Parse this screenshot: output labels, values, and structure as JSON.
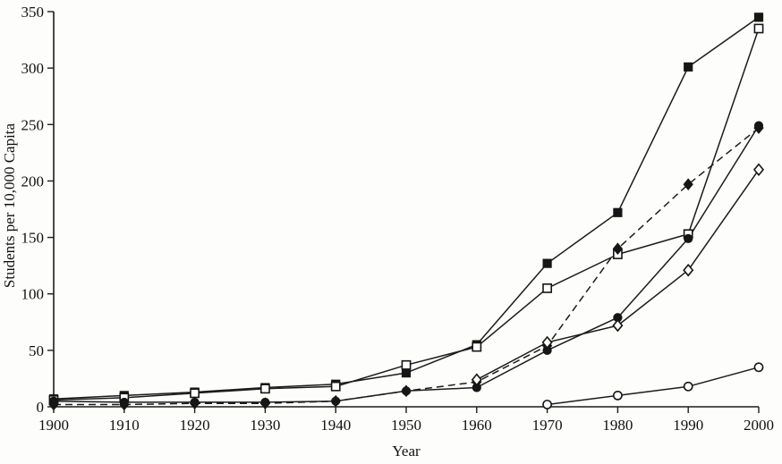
{
  "chart_data": {
    "type": "line",
    "title": "",
    "xlabel": "Year",
    "ylabel": "Students per 10,000 Capita",
    "x": [
      1900,
      1910,
      1920,
      1930,
      1940,
      1950,
      1960,
      1970,
      1980,
      1990,
      2000
    ],
    "xlim": [
      1900,
      2000
    ],
    "ylim": [
      0,
      350
    ],
    "yticks": [
      0,
      50,
      100,
      150,
      200,
      250,
      300,
      350
    ],
    "grid": false,
    "legend": "none",
    "axis_color": "#1c1c1c",
    "series": [
      {
        "name": "series-filled-square",
        "marker": "square-filled",
        "line": "solid",
        "values": [
          7,
          10,
          13,
          17,
          20,
          30,
          55,
          127,
          172,
          301,
          345
        ]
      },
      {
        "name": "series-open-square",
        "marker": "square-open",
        "line": "solid",
        "values": [
          6,
          8,
          12,
          16,
          18,
          37,
          53,
          105,
          135,
          153,
          335
        ]
      },
      {
        "name": "series-filled-circle",
        "marker": "circle-filled",
        "line": "solid",
        "values": [
          5,
          4,
          4,
          4,
          5,
          14,
          17,
          50,
          79,
          149,
          249
        ]
      },
      {
        "name": "series-filled-diamond",
        "marker": "diamond-filled",
        "line": "dashed",
        "values": [
          2,
          2,
          3,
          3,
          5,
          14,
          22,
          54,
          140,
          197,
          247
        ]
      },
      {
        "name": "series-open-diamond",
        "marker": "diamond-open",
        "line": "solid",
        "values": [
          null,
          null,
          null,
          null,
          null,
          null,
          24,
          57,
          72,
          121,
          210
        ]
      },
      {
        "name": "series-open-circle",
        "marker": "circle-open",
        "line": "solid",
        "values": [
          null,
          null,
          null,
          null,
          null,
          null,
          null,
          2,
          10,
          18,
          35
        ]
      }
    ]
  }
}
